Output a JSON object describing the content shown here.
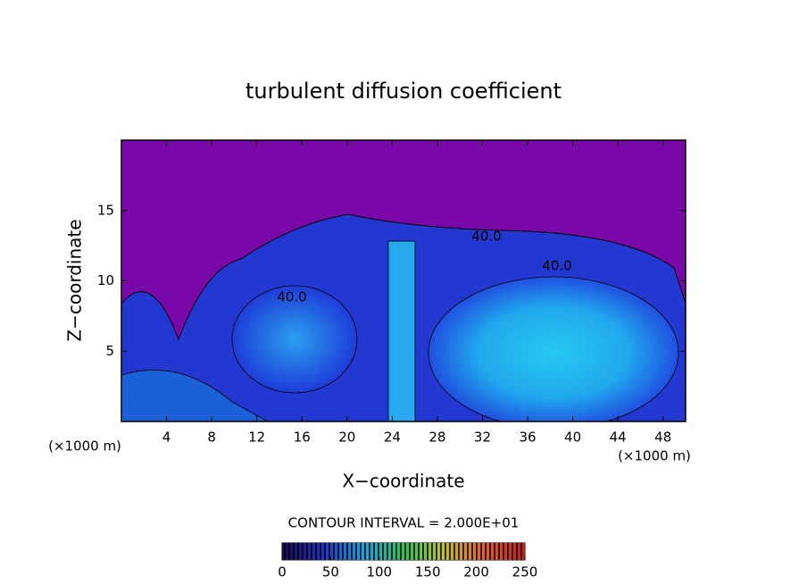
{
  "chart_data": {
    "type": "contour",
    "title": "turbulent diffusion coefficient",
    "x_label": "X−coordinate",
    "y_label": "Z−coordinate",
    "x_unit": "(×1000 m)",
    "y_unit": "(×1000 m)",
    "xlim": [
      0,
      50
    ],
    "xticks": [
      4,
      8,
      12,
      16,
      20,
      24,
      28,
      32,
      36,
      40,
      44,
      48
    ],
    "ylim": [
      0,
      20
    ],
    "yticks": [
      5,
      10,
      15
    ],
    "contour_labels": [
      "40.0",
      "40.0",
      "40.0"
    ],
    "contour_interval_label": "CONTOUR INTERVAL = 2.000E+01",
    "colorbar": {
      "lim": [
        0,
        250
      ],
      "ticks": [
        0,
        50,
        100,
        150,
        200,
        250
      ],
      "colors": [
        "#1a0a50",
        "#2030c0",
        "#20a0e0",
        "#30c060",
        "#c0c040",
        "#e06030",
        "#c02020"
      ]
    }
  }
}
